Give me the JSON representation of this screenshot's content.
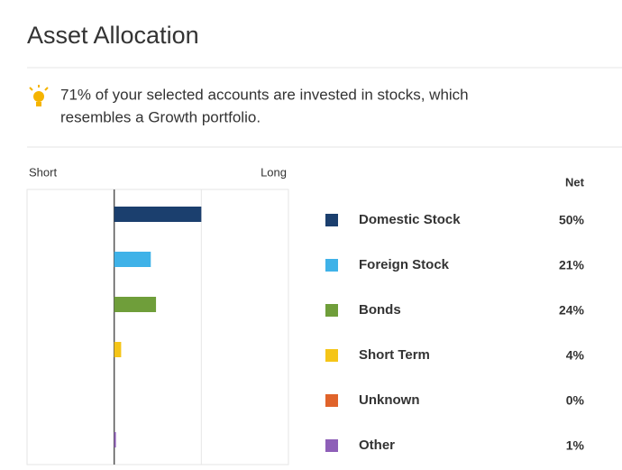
{
  "title": "Asset Allocation",
  "insight": [
    "71% of your selected accounts are invested in stocks, which",
    "resembles a Growth portfolio."
  ],
  "chart_data": {
    "type": "bar",
    "orientation": "horizontal",
    "axis_labels": {
      "left": "Short",
      "right": "Long"
    },
    "column_header": "Net",
    "categories": [
      "Domestic Stock",
      "Foreign Stock",
      "Bonds",
      "Short Term",
      "Unknown",
      "Other"
    ],
    "values": [
      50,
      21,
      24,
      4,
      0,
      1
    ],
    "value_labels": [
      "50%",
      "21%",
      "24%",
      "4%",
      "0%",
      "1%"
    ],
    "colors": [
      "#1b3f6e",
      "#3fb2e8",
      "#6f9e3a",
      "#f5c518",
      "#e0632a",
      "#8e5fb8"
    ],
    "xlim": [
      -50,
      100
    ],
    "xticks": [
      0,
      50
    ]
  }
}
